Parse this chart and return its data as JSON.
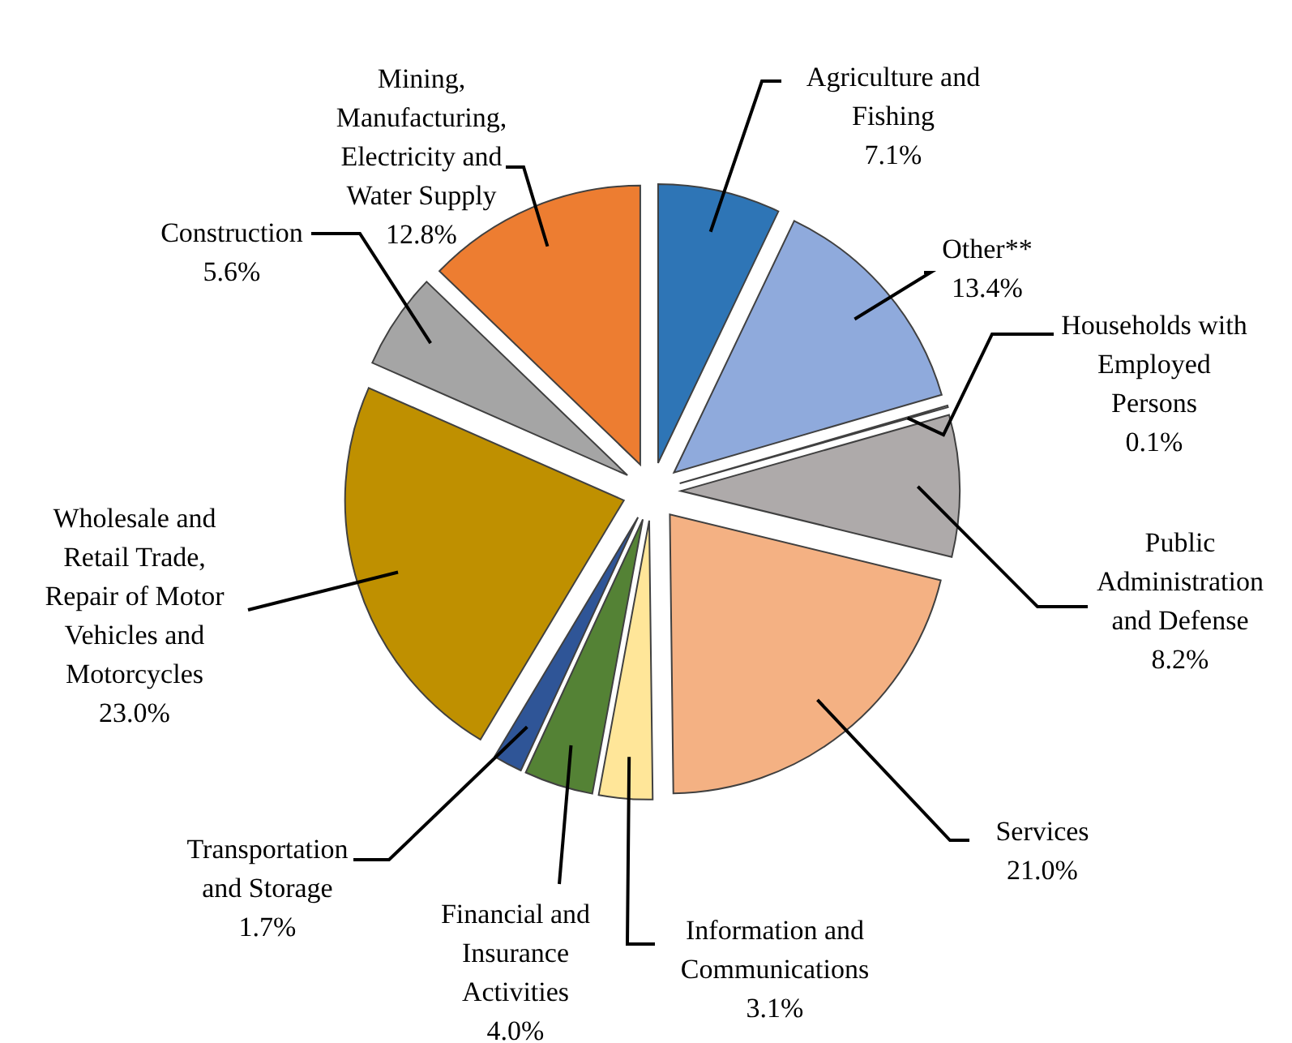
{
  "chart_data": {
    "type": "pie",
    "categories": [
      "Agriculture and Fishing",
      "Other**",
      "Households with Employed Persons",
      "Public Administration and Defense",
      "Services",
      "Information and Communications",
      "Financial and Insurance Activities",
      "Transportation and Storage",
      "Wholesale and Retail Trade, Repair of Motor Vehicles and Motorcycles",
      "Construction",
      "Mining, Manufacturing, Electricity and Water Supply"
    ],
    "values": [
      7.1,
      13.4,
      0.1,
      8.2,
      21.0,
      3.1,
      4.0,
      1.7,
      23.0,
      5.6,
      12.8
    ],
    "value_labels": [
      "7.1%",
      "13.4%",
      "0.1%",
      "8.2%",
      "21.0%",
      "3.1%",
      "4.0%",
      "1.7%",
      "23.0%",
      "5.6%",
      "12.8%"
    ],
    "colors": [
      "#2e75b6",
      "#8faadc",
      "#ffffff",
      "#aeaaaa",
      "#f4b183",
      "#ffe699",
      "#548235",
      "#2f5597",
      "#bf9000",
      "#a5a5a5",
      "#ed7d31"
    ]
  }
}
